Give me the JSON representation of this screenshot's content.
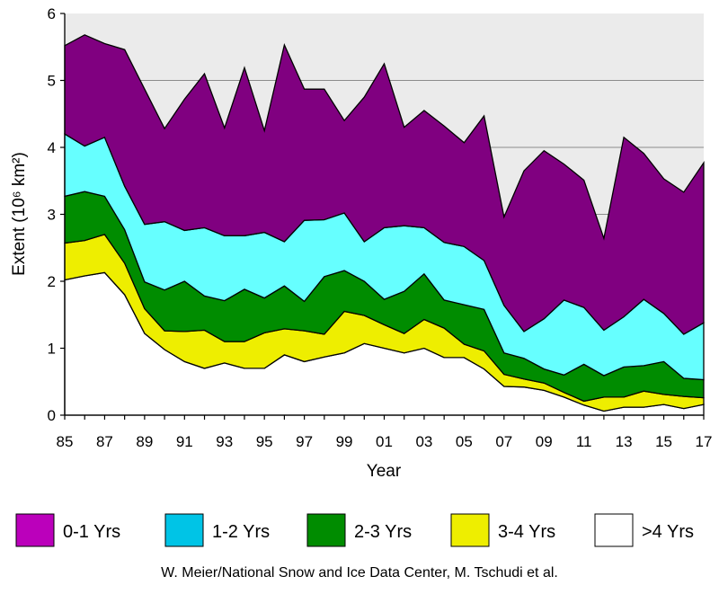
{
  "chart_data": {
    "type": "area",
    "stacked": true,
    "x_tick_labels": [
      "85",
      "87",
      "89",
      "91",
      "93",
      "95",
      "97",
      "99",
      "01",
      "03",
      "05",
      "07",
      "09",
      "11",
      "13",
      "15",
      "17"
    ],
    "y_ticks": [
      0,
      1,
      2,
      3,
      4,
      5,
      6
    ],
    "ylim": [
      0,
      6
    ],
    "xlim": [
      1985,
      2017
    ],
    "xlabel": "Year",
    "ylabel": "Extent (10⁶ km²)",
    "grid": "horizontal",
    "plot_background": "#EBEBEB",
    "x": [
      1985,
      1986,
      1987,
      1988,
      1989,
      1990,
      1991,
      1992,
      1993,
      1994,
      1995,
      1996,
      1997,
      1998,
      1999,
      2000,
      2001,
      2002,
      2003,
      2004,
      2005,
      2006,
      2007,
      2008,
      2009,
      2010,
      2011,
      2012,
      2013,
      2014,
      2015,
      2016,
      2017
    ],
    "series": [
      {
        "name": ">4 Yrs",
        "color": "#FFFFFF",
        "values": [
          2.02,
          2.08,
          2.13,
          1.8,
          1.22,
          0.98,
          0.8,
          0.7,
          0.78,
          0.7,
          0.7,
          0.9,
          0.8,
          0.87,
          0.93,
          1.07,
          1.0,
          0.93,
          1.0,
          0.86,
          0.86,
          0.69,
          0.43,
          0.42,
          0.37,
          0.27,
          0.15,
          0.06,
          0.12,
          0.12,
          0.16,
          0.1,
          0.16
        ]
      },
      {
        "name": "3-4 Yrs",
        "color": "#EEEE00",
        "values": [
          0.55,
          0.53,
          0.57,
          0.47,
          0.37,
          0.28,
          0.45,
          0.57,
          0.32,
          0.4,
          0.53,
          0.39,
          0.46,
          0.34,
          0.62,
          0.42,
          0.35,
          0.29,
          0.43,
          0.44,
          0.2,
          0.27,
          0.18,
          0.12,
          0.11,
          0.07,
          0.06,
          0.21,
          0.15,
          0.24,
          0.15,
          0.18,
          0.1
        ]
      },
      {
        "name": "2-3 Yrs",
        "color": "#008C00",
        "values": [
          0.7,
          0.73,
          0.57,
          0.5,
          0.4,
          0.61,
          0.75,
          0.51,
          0.61,
          0.78,
          0.52,
          0.64,
          0.44,
          0.86,
          0.61,
          0.51,
          0.38,
          0.63,
          0.68,
          0.42,
          0.59,
          0.62,
          0.32,
          0.31,
          0.21,
          0.26,
          0.55,
          0.32,
          0.45,
          0.38,
          0.49,
          0.27,
          0.27
        ]
      },
      {
        "name": "1-2 Yrs",
        "color": "#66FFFF",
        "values": [
          0.93,
          0.68,
          0.88,
          0.65,
          0.86,
          1.02,
          0.76,
          1.02,
          0.97,
          0.8,
          0.98,
          0.66,
          1.21,
          0.85,
          0.86,
          0.59,
          1.07,
          0.98,
          0.69,
          0.86,
          0.87,
          0.73,
          0.71,
          0.4,
          0.75,
          1.12,
          0.85,
          0.68,
          0.75,
          0.99,
          0.72,
          0.66,
          0.85
        ]
      },
      {
        "name": "0-1 Yrs",
        "color": "#800080",
        "values": [
          1.32,
          1.66,
          1.4,
          2.04,
          2.02,
          1.39,
          1.96,
          2.3,
          1.61,
          2.51,
          1.52,
          2.94,
          1.96,
          1.95,
          1.38,
          2.16,
          2.45,
          1.47,
          1.75,
          1.74,
          1.55,
          2.16,
          1.32,
          2.4,
          2.51,
          2.03,
          1.9,
          1.37,
          2.68,
          2.18,
          2.01,
          2.12,
          2.39
        ]
      }
    ]
  },
  "legend": [
    {
      "label": "0-1 Yrs",
      "color": "#BB00BB"
    },
    {
      "label": "1-2 Yrs",
      "color": "#00C4E6"
    },
    {
      "label": "2-3 Yrs",
      "color": "#008C00"
    },
    {
      "label": "3-4 Yrs",
      "color": "#EEEE00"
    },
    {
      "label": ">4 Yrs",
      "color": "#FFFFFF"
    }
  ],
  "credit": "W. Meier/National Snow and Ice Data Center, M. Tschudi et al."
}
